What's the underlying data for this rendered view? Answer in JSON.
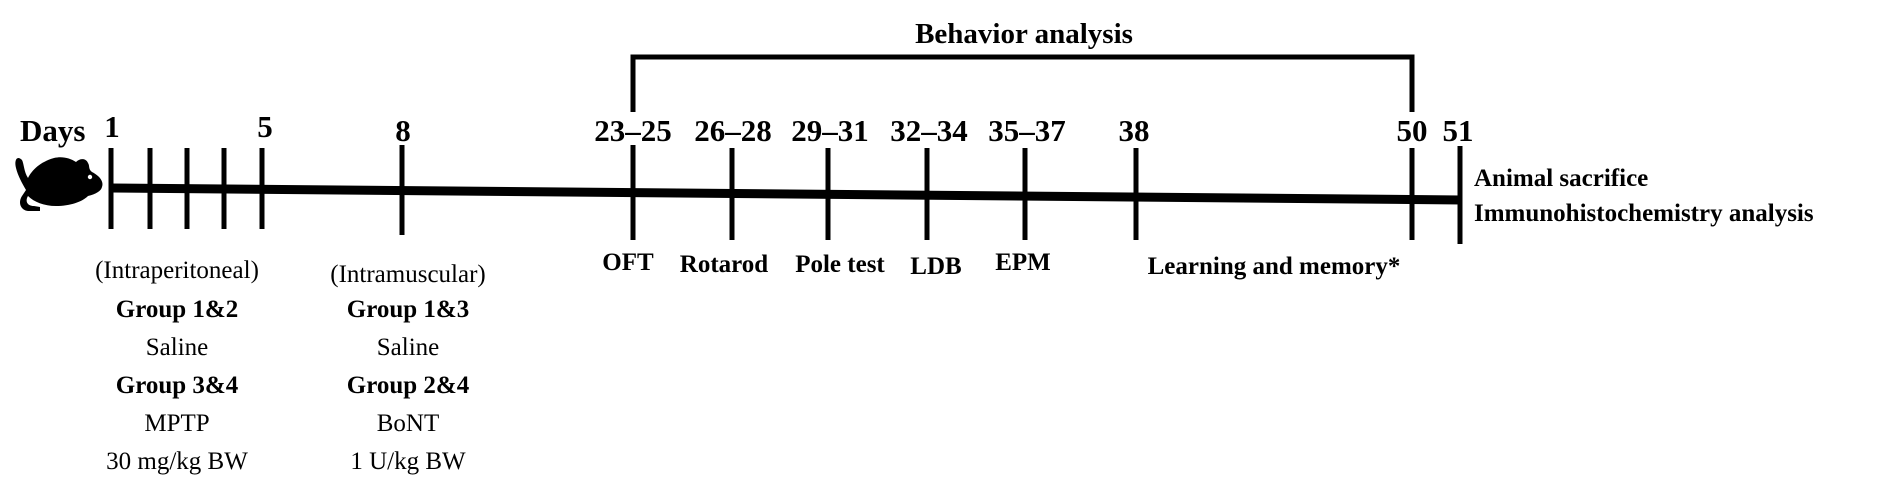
{
  "title": "Behavior analysis",
  "axis_label": "Days",
  "mouse_icon": "mouse-silhouette-icon",
  "days": {
    "d1": "1",
    "d5": "5",
    "d8": "8",
    "d23": "23–25",
    "d26": "26–28",
    "d29": "29–31",
    "d32": "32–34",
    "d35": "35–37",
    "d38": "38",
    "d50": "50",
    "d51": "51"
  },
  "tests": {
    "oft": "OFT",
    "rotarod": "Rotarod",
    "pole": "Pole test",
    "ldb": "LDB",
    "epm": "EPM",
    "learning": "Learning and memory*"
  },
  "injection1": {
    "route": "(Intraperitoneal)",
    "groupA": "Group 1&2",
    "agentA": "Saline",
    "groupB": "Group 3&4",
    "agentB": "MPTP",
    "dose": "30 mg/kg  BW"
  },
  "injection2": {
    "route": "(Intramuscular)",
    "groupA": "Group 1&3",
    "agentA": "Saline",
    "groupB": "Group 2&4",
    "agentB": "BoNT",
    "dose": "1 U/kg BW"
  },
  "endpoint": {
    "line1": "Animal sacrifice",
    "line2": "Immunohistochemistry  analysis"
  }
}
